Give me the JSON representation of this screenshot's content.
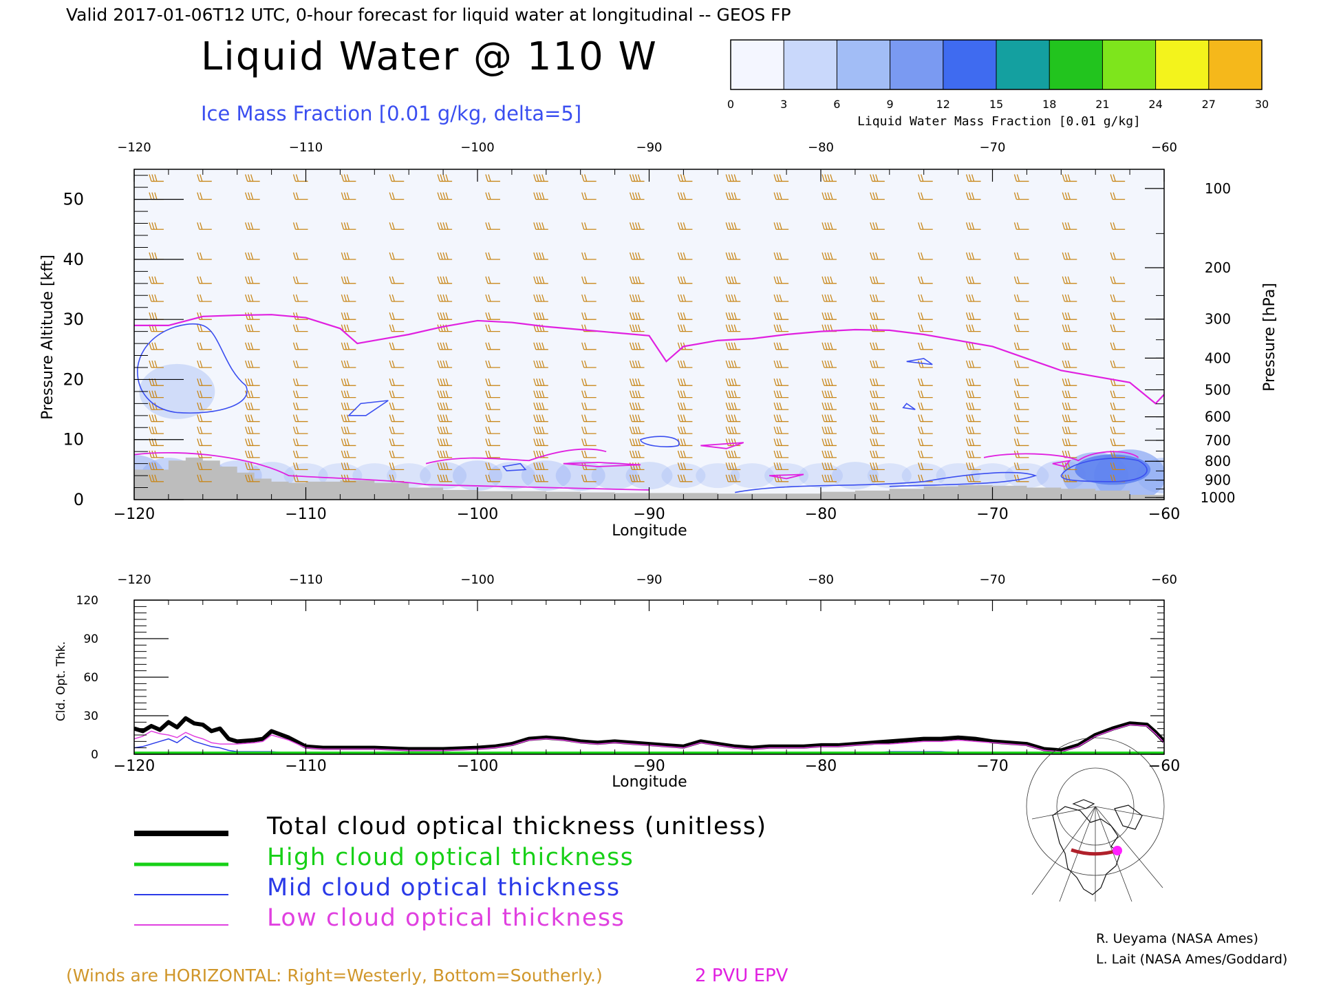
{
  "header": {
    "valid_line": "Valid 2017-01-06T12 UTC, 0-hour forecast for liquid water at longitudinal -- GEOS FP",
    "title": "Liquid Water @ 110 W",
    "ice_label": "Ice Mass Fraction [0.01 g/kg, delta=5]"
  },
  "colorbar": {
    "ticks": [
      "0",
      "3",
      "6",
      "9",
      "12",
      "15",
      "18",
      "21",
      "24",
      "27",
      "30"
    ],
    "colors": [
      "#f4f6ff",
      "#c9d8fb",
      "#a2bdf6",
      "#7a9af2",
      "#3f6bf0",
      "#14a0a0",
      "#22c41e",
      "#7ee51c",
      "#f3f31c",
      "#f5b81b",
      "#f57a18"
    ],
    "label": "Liquid Water Mass Fraction [0.01 g/kg]"
  },
  "colors": {
    "ice": "#3a4ef0",
    "wind": "#c8871a",
    "epv": "#e020e0",
    "terrain": "#bdbdbd",
    "total": "#000000",
    "high": "#17d017",
    "mid": "#2a3ae8",
    "low": "#e040e0"
  },
  "upper_panel": {
    "x_ticks": [
      "−120",
      "−110",
      "−100",
      "−90",
      "−80",
      "−70",
      "−60"
    ],
    "y_left_ticks": [
      "0",
      "10",
      "20",
      "30",
      "40",
      "50"
    ],
    "y_left_label": "Pressure Altitude [kft]",
    "y_right_ticks": [
      "100",
      "200",
      "300",
      "400",
      "500",
      "600",
      "700",
      "800",
      "900",
      "1000"
    ],
    "y_right_label": "Pressure [hPa]",
    "x_label": "Longitude"
  },
  "lower_panel": {
    "x_ticks": [
      "−120",
      "−110",
      "−100",
      "−90",
      "−80",
      "−70",
      "−60"
    ],
    "y_ticks": [
      "0",
      "30",
      "60",
      "90",
      "120"
    ],
    "y_label": "Cld. Opt. Thk.",
    "x_label": "Longitude"
  },
  "legend": {
    "total": "Total cloud optical thickness (unitless)",
    "high": "High cloud optical thickness",
    "mid": "Mid cloud optical thickness",
    "low": "Low cloud optical thickness"
  },
  "footer": {
    "winds_note": "(Winds are HORIZONTAL: Right=Westerly, Bottom=Southerly.)",
    "epv_label": "2 PVU EPV",
    "credit1": "R. Ueyama (NASA Ames)",
    "credit2": "L. Lait (NASA Ames/Goddard)"
  },
  "chart_data": [
    {
      "type": "area",
      "name_hint": "upper cross-section",
      "xlim": [
        -120,
        -60
      ],
      "ylim": [
        0,
        55
      ],
      "epv_2pvu": {
        "x": [
          -120,
          -118,
          -116,
          -114,
          -112,
          -110,
          -108,
          -107,
          -106,
          -104,
          -102,
          -100,
          -98,
          -96,
          -94,
          -92,
          -90,
          -89,
          -88,
          -86,
          -84,
          -82,
          -80,
          -78,
          -76,
          -74,
          -72,
          -70,
          -68,
          -66,
          -64,
          -62,
          -60.5,
          -60
        ],
        "y": [
          29,
          29,
          30.5,
          30.7,
          30.8,
          30.3,
          28.5,
          26,
          26.5,
          27.5,
          28.8,
          29.8,
          29.5,
          28.8,
          28.3,
          27.8,
          27.3,
          23,
          25.5,
          26.5,
          26.8,
          27.5,
          28,
          28.3,
          28.2,
          27.5,
          26.5,
          25.5,
          23.5,
          21.5,
          20.5,
          19.5,
          16,
          17.5
        ]
      },
      "terrain_kft": {
        "x": [
          -120,
          -119,
          -118,
          -117,
          -116,
          -115,
          -114,
          -113,
          -112,
          -111,
          -110,
          -108,
          -106,
          -104,
          -102,
          -100,
          -98,
          -96,
          -94,
          -92,
          -90,
          -88,
          -86,
          -84,
          -82,
          -80,
          -78,
          -76,
          -74,
          -72,
          -70,
          -68,
          -66,
          -64,
          -62,
          -60
        ],
        "y": [
          5,
          5,
          6.5,
          7,
          6.5,
          5.5,
          4.5,
          3.5,
          3,
          2.8,
          3,
          3.2,
          2.8,
          2,
          1.6,
          1.4,
          1.4,
          1.3,
          1.2,
          1.1,
          1.1,
          1.1,
          1,
          1,
          1,
          1.3,
          1.5,
          1.8,
          2.2,
          2.4,
          2.3,
          2,
          1.8,
          1.5,
          0.8,
          0.3
        ]
      },
      "liquid_water_0p01gkg": {
        "x": [
          -120,
          -118,
          -116,
          -114,
          -112,
          -110,
          -108,
          -106,
          -104,
          -102,
          -100,
          -98,
          -96,
          -94,
          -92,
          -90,
          -88,
          -86,
          -84,
          -82,
          -80,
          -78,
          -76,
          -74,
          -72,
          -70,
          -68,
          -66,
          -64,
          -62,
          -60
        ],
        "y": [
          4,
          3,
          2,
          2,
          1.5,
          1,
          1,
          1,
          1,
          1.5,
          2,
          1.5,
          2,
          2,
          1.5,
          1.5,
          1,
          1,
          1,
          1,
          1,
          1.5,
          1,
          1,
          1,
          1,
          1,
          2,
          5,
          6,
          3
        ]
      }
    },
    {
      "type": "line",
      "name_hint": "lower cloud optical thickness",
      "xlim": [
        -120,
        -60
      ],
      "ylim": [
        0,
        120
      ],
      "x": [
        -120,
        -119.5,
        -119,
        -118.5,
        -118,
        -117.5,
        -117,
        -116.5,
        -116,
        -115.5,
        -115,
        -114.5,
        -114,
        -113,
        -112.5,
        -112,
        -111,
        -110,
        -109,
        -108,
        -106,
        -104,
        -102,
        -100,
        -99,
        -98,
        -97,
        -96,
        -95,
        -94,
        -93,
        -92,
        -91,
        -90,
        -89,
        -88,
        -87,
        -86,
        -85,
        -84,
        -83,
        -82,
        -81,
        -80,
        -79,
        -78,
        -77,
        -76,
        -75,
        -74,
        -73,
        -72,
        -71,
        -70,
        -69,
        -68,
        -67,
        -66,
        -65,
        -64,
        -63,
        -62,
        -61,
        -60.5,
        -60
      ],
      "series": [
        {
          "name": "Total cloud optical thickness (unitless)",
          "values": [
            20,
            18,
            22,
            19,
            25,
            21,
            28,
            24,
            23,
            18,
            20,
            12,
            10,
            11,
            12,
            18,
            13,
            6,
            5,
            5,
            5,
            4,
            4,
            5,
            6,
            8,
            12,
            13,
            12,
            10,
            9,
            10,
            9,
            8,
            7,
            6,
            10,
            8,
            6,
            5,
            6,
            6,
            6,
            7,
            7,
            8,
            9,
            10,
            11,
            12,
            12,
            13,
            12,
            10,
            9,
            8,
            4,
            3,
            7,
            15,
            20,
            24,
            23,
            17,
            10
          ]
        },
        {
          "name": "High cloud optical thickness",
          "values": [
            1,
            1,
            1,
            1,
            1,
            1,
            1,
            1,
            1,
            1,
            1,
            1,
            1,
            1,
            1,
            1,
            1,
            1,
            1,
            1,
            1,
            1,
            1,
            1,
            1,
            1,
            1,
            1,
            1,
            1,
            1,
            1,
            1,
            1,
            1,
            1,
            1,
            1,
            1,
            1,
            1,
            1,
            1,
            1,
            1,
            1,
            1,
            1,
            1,
            1,
            1,
            1,
            1,
            1,
            1,
            1,
            1,
            1,
            1,
            1,
            1,
            1,
            1,
            1,
            1
          ]
        },
        {
          "name": "Mid cloud optical thickness",
          "values": [
            5,
            6,
            8,
            10,
            12,
            9,
            14,
            10,
            8,
            6,
            5,
            3,
            2,
            2,
            2,
            2,
            1,
            1,
            1,
            1,
            1,
            1,
            1,
            1,
            1,
            1,
            1,
            1,
            1,
            1,
            1,
            1,
            1,
            1,
            1,
            1,
            1,
            1,
            1,
            1,
            1,
            1,
            1,
            1,
            1,
            1,
            1,
            2,
            2,
            2,
            2,
            1,
            1,
            1,
            1,
            1,
            1,
            1,
            1,
            1,
            1,
            1,
            1,
            1,
            1
          ]
        },
        {
          "name": "Low cloud optical thickness",
          "values": [
            12,
            14,
            18,
            16,
            15,
            13,
            17,
            14,
            12,
            9,
            8,
            8,
            8,
            9,
            10,
            15,
            11,
            5,
            4,
            4,
            4,
            3,
            3,
            4,
            5,
            7,
            11,
            12,
            11,
            9,
            8,
            9,
            8,
            7,
            6,
            5,
            9,
            7,
            5,
            4,
            5,
            5,
            5,
            6,
            6,
            7,
            8,
            8,
            9,
            10,
            10,
            11,
            10,
            9,
            8,
            7,
            3,
            2,
            6,
            14,
            19,
            23,
            22,
            16,
            9
          ]
        }
      ]
    }
  ]
}
